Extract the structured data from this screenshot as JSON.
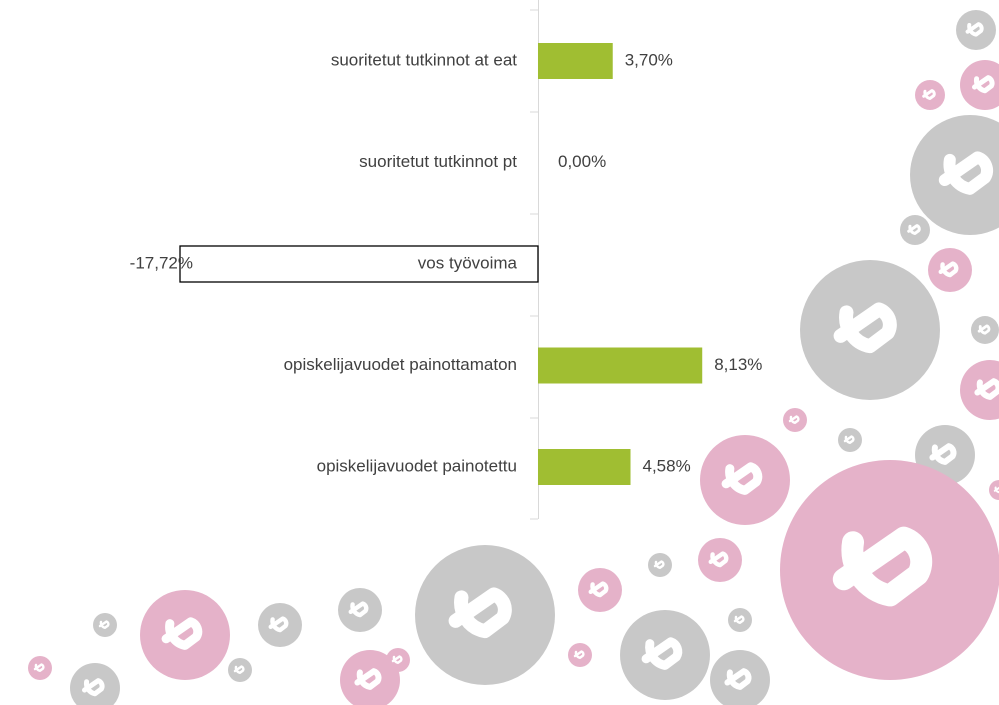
{
  "chart_data": {
    "type": "barh",
    "categories": [
      "suoritetut tutkinnot at eat",
      "suoritetut tutkinnot pt",
      "vos työvoima",
      "opiskelijavuodet painottamaton",
      "opiskelijavuodet painotettu"
    ],
    "values": [
      3.7,
      0.0,
      -17.72,
      8.13,
      4.58
    ],
    "value_labels": [
      "3,70%",
      "0,00%",
      "-17,72%",
      "8,13%",
      "4,58%"
    ],
    "color": "#a0be32",
    "negative_color": "#ffffff",
    "xlim": [
      -26.63,
      22.82
    ]
  }
}
